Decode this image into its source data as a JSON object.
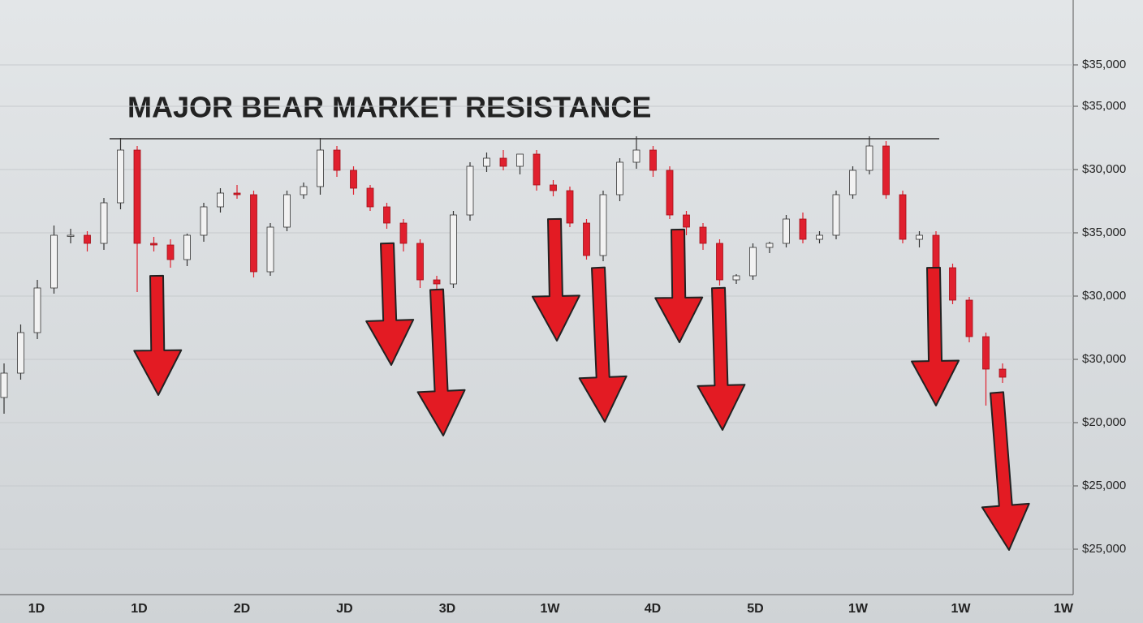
{
  "chart_data": {
    "type": "candlestick",
    "title": "MAJOR BEAR MARKET RESISTANCE",
    "categories": [
      "1D",
      "1D",
      "2D",
      "JD",
      "3D",
      "1W",
      "4D",
      "5D",
      "1W",
      "1W",
      "1W"
    ],
    "y_axis_labels": [
      "$35,000",
      "$35,000",
      "$30,000",
      "$35,000",
      "$30,000",
      "$30,000",
      "$20,000",
      "$25,000",
      "$25,000"
    ],
    "ylim": [
      0,
      740
    ],
    "resistance_level": 569,
    "up_color": "#f2f2f2",
    "down_color": "#e0202e",
    "open": [
      250,
      280,
      330,
      385,
      450,
      450,
      440,
      490,
      555,
      440,
      438,
      420,
      450,
      485,
      502,
      500,
      405,
      460,
      500,
      510,
      555,
      530,
      508,
      485,
      465,
      440,
      395,
      390,
      475,
      535,
      545,
      535,
      550,
      512,
      505,
      465,
      425,
      500,
      540,
      555,
      530,
      475,
      460,
      440,
      395,
      400,
      435,
      440,
      470,
      445,
      450,
      500,
      530,
      560,
      500,
      445,
      450,
      410,
      370,
      325,
      285
    ],
    "high": [
      292,
      340,
      395,
      462,
      458,
      455,
      496,
      570,
      560,
      448,
      445,
      452,
      490,
      508,
      512,
      505,
      465,
      505,
      515,
      570,
      560,
      535,
      512,
      490,
      470,
      445,
      400,
      480,
      540,
      552,
      555,
      545,
      555,
      518,
      510,
      470,
      505,
      545,
      572,
      560,
      535,
      480,
      465,
      445,
      402,
      440,
      442,
      475,
      478,
      455,
      505,
      535,
      572,
      566,
      505,
      455,
      455,
      415,
      374,
      330,
      292
    ],
    "low": [
      230,
      272,
      322,
      378,
      440,
      430,
      432,
      482,
      380,
      430,
      410,
      412,
      442,
      478,
      495,
      398,
      400,
      455,
      495,
      500,
      522,
      500,
      480,
      458,
      430,
      385,
      380,
      385,
      468,
      528,
      530,
      525,
      505,
      498,
      460,
      420,
      418,
      492,
      532,
      522,
      470,
      450,
      432,
      388,
      390,
      395,
      428,
      435,
      440,
      440,
      445,
      495,
      525,
      495,
      440,
      435,
      402,
      365,
      318,
      240,
      268
    ],
    "close": [
      280,
      330,
      385,
      450,
      450,
      440,
      490,
      555,
      440,
      438,
      420,
      450,
      485,
      502,
      500,
      405,
      460,
      500,
      510,
      555,
      530,
      508,
      485,
      465,
      440,
      395,
      390,
      475,
      535,
      545,
      535,
      550,
      512,
      505,
      465,
      425,
      500,
      540,
      555,
      530,
      475,
      460,
      440,
      395,
      400,
      435,
      440,
      470,
      445,
      450,
      500,
      530,
      560,
      500,
      445,
      450,
      410,
      370,
      325,
      285,
      275
    ]
  }
}
